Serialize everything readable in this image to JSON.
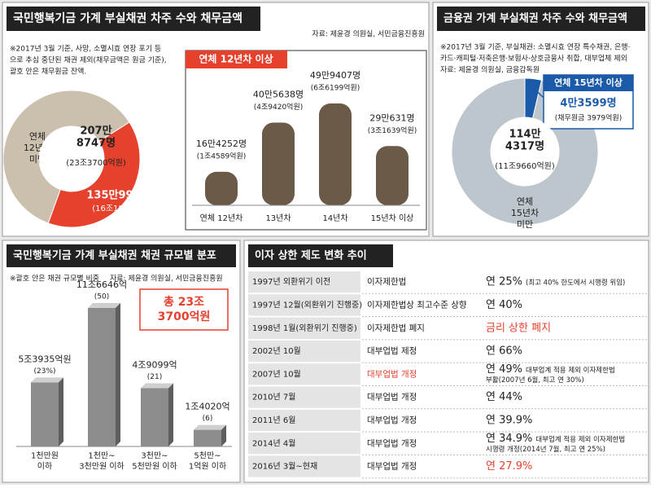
{
  "chart_data": [
    {
      "type": "pie",
      "title": "국민행복기금 가계 부실채권 차주 수와 채무금액",
      "source": "자료: 제윤경 의원실, 서민금융진흥원",
      "note": [
        "※2017년 3월 기준, 사망, 소멸시효 연장 포기 등",
        "으로 추심 중단된 채권 제외(채무금액은 원금 기준),",
        "괄호 안은 채무원금 잔액."
      ],
      "categories": [
        "연체 12년차 미만",
        "연체 12년차 이상"
      ],
      "values": [
        2078747,
        1359928
      ],
      "value_labels": [
        "207만 8747명",
        "135만9928명"
      ],
      "amount_labels": [
        "(23조3700억원)",
        "(16조1847억원)"
      ],
      "colors": [
        "#cbbfae",
        "#e5412d"
      ]
    },
    {
      "type": "bar",
      "title": "연체 12년차 이상",
      "categories": [
        "연체 12년차",
        "13년차",
        "14년차",
        "15년차 이상"
      ],
      "values": [
        164252,
        405638,
        499407,
        290631
      ],
      "value_labels": [
        "16만4252명",
        "40만5638명",
        "49만9407명",
        "29만631명"
      ],
      "amount_labels": [
        "(1조4589억원)",
        "(4조9420억원)",
        "(6조6199억원)",
        "(3조1639억원)"
      ],
      "color": "#6b5a48",
      "title_color": "#e5412d"
    },
    {
      "type": "pie",
      "title": "금융권 가계 부실채권 차주 수와 채무금액",
      "note": [
        "※2017년 3월 기준, 부실채권: 소멸시효 연장 특수채권, 은행·",
        "카드·캐피털·저축은행·보험사·상호금융사 취합, 대부업체 제외",
        "자료: 제윤경 의원실, 금융감독원"
      ],
      "categories": [
        "연체 15년차 미만",
        "연체 15년차 이상"
      ],
      "values": [
        1144317,
        43599
      ],
      "value_labels": [
        "114만 4317명",
        "4만3599명"
      ],
      "amount_labels": [
        "(11조9660억원)",
        "(채무원금 3979억원)"
      ],
      "colors": [
        "#bcc6cc",
        "#1a5aa8"
      ]
    },
    {
      "type": "bar",
      "title": "국민행복기금 가계 부실채권 채권 규모별 분포",
      "note": [
        "※괄호 안은 채권 규모별 비중"
      ],
      "source": "자료: 제윤경 의원실, 서민금융진흥원",
      "categories": [
        "1천만원 이하",
        "1천만~3천만원 이하",
        "3천만~5천만원 이하",
        "5천만~1억원 이하"
      ],
      "values": [
        53935,
        116646,
        49099,
        14020
      ],
      "value_labels": [
        "5조3935억원",
        "11조6646억",
        "4조9099억",
        "1조4020억"
      ],
      "amount_labels": [
        "(23%)",
        "(50)",
        "(21)",
        "(6)"
      ],
      "total_label": "총 23조 3700억원",
      "color": "#8c8c8c",
      "title_color": "#e5412d"
    }
  ],
  "table": {
    "title": "이자 상한 제도 변화 추이",
    "highlight_color": "#e5412d",
    "rows": [
      {
        "date": "1997년 외환위기 이전",
        "law": "이자제한법",
        "rate": "연 25%",
        "note": [
          "(최고 40% 한도에서 시행령 위임)"
        ]
      },
      {
        "date": "1997년 12월(외환위기 진행중)",
        "law": "이자제한법상 최고수준 상향",
        "rate": "연 40%"
      },
      {
        "date": "1998년 1월(외환위기 진행중)",
        "law": "이자제한법 폐지",
        "rate": "금리 상한 폐지",
        "highlight": "rate"
      },
      {
        "date": "2002년 10월",
        "law": "대부업법 제정",
        "rate": "연 66%"
      },
      {
        "date": "2007년 10월",
        "law": "대부업법 개정",
        "rate": "연 49%",
        "note": [
          "대부업계 적용 제외 이자제한법",
          "부활(2007년 6월, 최고 연 30%)"
        ],
        "highlight": "law"
      },
      {
        "date": "2010년 7월",
        "law": "대부업법 개정",
        "rate": "연 44%"
      },
      {
        "date": "2011년 6월",
        "law": "대부업법 개정",
        "rate": "연 39.9%"
      },
      {
        "date": "2014년 4월",
        "law": "대부업법 개정",
        "rate": "연 34.9%",
        "note": [
          "대부업계 적용 제외 이자제한법",
          "시행령 개정(2014년 7월, 최고 연 25%)"
        ]
      },
      {
        "date": "2016년 3월~현재",
        "law": "대부업법 개정",
        "rate": "연 27.9%",
        "highlight": "rate"
      }
    ]
  }
}
